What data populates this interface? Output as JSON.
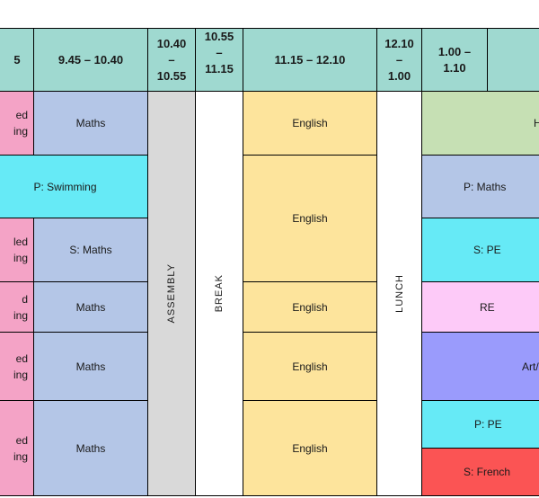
{
  "header": {
    "col0": "5",
    "col1": "9.45 – 10.40",
    "col2": [
      "10.40",
      "–",
      "10.55"
    ],
    "col3": [
      "10.55",
      "–",
      "11.15"
    ],
    "col4": "11.15 – 12.10",
    "col5": [
      "12.10",
      "–",
      "1.00"
    ],
    "col6": [
      "1.00 –",
      "1.10"
    ]
  },
  "rows": [
    {
      "c0": "ed\ning",
      "c1": "Maths",
      "c4": "English",
      "c6": "H"
    },
    {
      "c01": "P: Swimming",
      "c4": "English",
      "c6": "P: Maths"
    },
    {
      "c0": "led\ning",
      "c1": "S: Maths",
      "c6": "S: PE"
    },
    {
      "c0": "d\ning",
      "c1": "Maths",
      "c4": "English",
      "c6": "RE"
    },
    {
      "c0": "ed\ning",
      "c1": "Maths",
      "c4": "English",
      "c6": "Art/"
    },
    {
      "c0": "ed\ning",
      "c1": "Maths",
      "c4": "English",
      "c6a": "P: PE",
      "c6b": "S: French"
    }
  ],
  "vertical": {
    "assembly": "ASSEMBLY",
    "break": "BREAK",
    "lunch": "LUNCH"
  },
  "colors": {
    "header": "#9fd9d0",
    "pink": "#f4a3c6",
    "blue": "#b4c6e7",
    "cyan": "#66eaf6",
    "yellow": "#fde49c",
    "green": "#c6e0b4",
    "lilac": "#fdcaf8",
    "violet": "#9a9bfc",
    "red": "#fb5454",
    "grey": "#d9d9d9"
  }
}
